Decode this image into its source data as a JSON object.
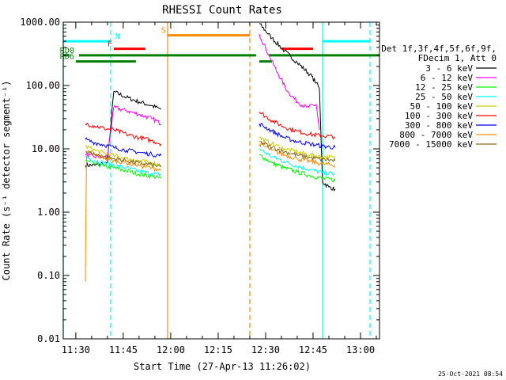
{
  "chart_data": {
    "type": "line",
    "title": "RHESSI Count Rates",
    "xlabel": "Start Time (27-Apr-13 11:26:02)",
    "ylabel": "Count Rate (s⁻¹ detector segment⁻¹)",
    "yscale": "log",
    "ylim": [
      0.01,
      1000
    ],
    "xlim": [
      "11:26:02",
      "13:06"
    ],
    "xticks": [
      "11:30",
      "11:45",
      "12:00",
      "12:15",
      "12:30",
      "12:45",
      "13:00"
    ],
    "yticks": [
      "0.01",
      "0.10",
      "1.00",
      "10.00",
      "100.00",
      "1000.00"
    ],
    "grid": false,
    "legend_position": "right",
    "legend_header": [
      "Det 1f,3f,4f,5f,6f,9f,",
      "FDecim 1, Att 0"
    ],
    "footer_date": "25-Oct-2021 08:54",
    "series": [
      {
        "name": "3 - 6 keV",
        "color": "#000000",
        "segments": [
          {
            "x": [
              "11:33",
              "11:36",
              "11:39",
              "11:40",
              "11:42",
              "11:46",
              "11:50",
              "11:54",
              "11:57"
            ],
            "y": [
              5.5,
              5.5,
              6.0,
              6.0,
              80,
              65,
              55,
              48,
              42
            ]
          },
          {
            "x": [
              "12:28",
              "12:32",
              "12:36",
              "12:40",
              "12:44",
              "12:46",
              "12:47",
              "12:48",
              "12:50",
              "12:52"
            ],
            "y": [
              950,
              560,
              350,
              230,
              150,
              110,
              90,
              3.0,
              2.5,
              2.3
            ]
          }
        ]
      },
      {
        "name": "6 - 12 keV",
        "color": "#ff00ff",
        "segments": [
          {
            "x": [
              "11:33",
              "11:36",
              "11:39",
              "11:40",
              "11:42",
              "11:46",
              "11:50",
              "11:54",
              "11:57"
            ],
            "y": [
              8,
              7.5,
              7.5,
              7.5,
              45,
              40,
              35,
              30,
              25
            ]
          },
          {
            "x": [
              "12:28",
              "12:31",
              "12:34",
              "12:37",
              "12:40",
              "12:43",
              "12:46",
              "12:47"
            ],
            "y": [
              650,
              300,
              150,
              80,
              55,
              45,
              50,
              20
            ]
          }
        ]
      },
      {
        "name": "12 - 25 keV",
        "color": "#00ff00",
        "segments": [
          {
            "x": [
              "11:33",
              "11:36",
              "11:39",
              "11:42",
              "11:46",
              "11:50",
              "11:54",
              "11:57"
            ],
            "y": [
              6.5,
              5.8,
              5.3,
              5.0,
              4.5,
              4.0,
              3.7,
              3.4
            ]
          },
          {
            "x": [
              "12:28",
              "12:32",
              "12:36",
              "12:40",
              "12:44",
              "12:48",
              "12:52"
            ],
            "y": [
              8,
              6,
              5,
              4.3,
              3.8,
              3.4,
              3.2
            ]
          }
        ]
      },
      {
        "name": "25 - 50 keV",
        "color": "#00ffff",
        "segments": [
          {
            "x": [
              "11:33",
              "11:36",
              "11:39",
              "11:42",
              "11:46",
              "11:50",
              "11:54",
              "11:57"
            ],
            "y": [
              7.5,
              6.5,
              6.0,
              5.5,
              5.0,
              4.4,
              4.1,
              3.9
            ]
          },
          {
            "x": [
              "12:28",
              "12:32",
              "12:36",
              "12:40",
              "12:44",
              "12:48",
              "12:52"
            ],
            "y": [
              10,
              7.5,
              6.3,
              5.3,
              4.7,
              4.2,
              4.0
            ]
          }
        ]
      },
      {
        "name": "50 - 100 keV",
        "color": "#cccc00",
        "segments": [
          {
            "x": [
              "11:33",
              "11:36",
              "11:39",
              "11:42",
              "11:46",
              "11:50",
              "11:54",
              "11:57"
            ],
            "y": [
              11,
              9.5,
              8.5,
              7.8,
              7.0,
              6.5,
              6.0,
              5.5
            ]
          },
          {
            "x": [
              "12:28",
              "12:32",
              "12:36",
              "12:40",
              "12:44",
              "12:48",
              "12:52"
            ],
            "y": [
              15,
              12,
              10,
              9,
              8,
              7.5,
              7.2
            ]
          }
        ]
      },
      {
        "name": "100 - 300 keV",
        "color": "#ff0000",
        "segments": [
          {
            "x": [
              "11:33",
              "11:36",
              "11:39",
              "11:42",
              "11:46",
              "11:50",
              "11:54",
              "11:57"
            ],
            "y": [
              25,
              23,
              21,
              20,
              17,
              15,
              13.5,
              12
            ]
          },
          {
            "x": [
              "12:28",
              "12:32",
              "12:36",
              "12:40",
              "12:44",
              "12:48",
              "12:52"
            ],
            "y": [
              38,
              28,
              22,
              19,
              17,
              16,
              15.5
            ]
          }
        ]
      },
      {
        "name": "300 - 800 keV",
        "color": "#0000ff",
        "segments": [
          {
            "x": [
              "11:33",
              "11:36",
              "11:39",
              "11:42",
              "11:46",
              "11:50",
              "11:54",
              "11:57"
            ],
            "y": [
              14,
              12.5,
              11.5,
              10.5,
              9.5,
              8.8,
              8.2,
              7.8
            ]
          },
          {
            "x": [
              "12:28",
              "12:32",
              "12:36",
              "12:40",
              "12:44",
              "12:48",
              "12:52"
            ],
            "y": [
              25,
              19,
              15,
              13,
              12,
              11,
              10.5
            ]
          }
        ]
      },
      {
        "name": "800 - 7000 keV",
        "color": "#ff8c00",
        "segments": [
          {
            "x": [
              "11:33",
              "11:33.2",
              "11:33.4",
              "11:36",
              "11:39",
              "11:42",
              "11:46",
              "11:50",
              "11:54",
              "11:57"
            ],
            "y": [
              0.08,
              1.0,
              9,
              8,
              7.2,
              6.5,
              6.0,
              5.5,
              5.0,
              4.6
            ]
          },
          {
            "x": [
              "12:28",
              "12:32",
              "12:36",
              "12:40",
              "12:44",
              "12:48",
              "12:52"
            ],
            "y": [
              12,
              9.5,
              8,
              7,
              6.3,
              5.8,
              5.5
            ]
          }
        ]
      },
      {
        "name": "7000 - 15000 keV",
        "color": "#8b6914",
        "segments": [
          {
            "x": [
              "11:33",
              "11:36",
              "11:39",
              "11:42",
              "11:46",
              "11:50",
              "11:54",
              "11:57"
            ],
            "y": [
              9,
              8.2,
              7.5,
              7.0,
              6.5,
              6.0,
              5.6,
              5.2
            ]
          },
          {
            "x": [
              "12:28",
              "12:32",
              "12:36",
              "12:40",
              "12:44",
              "12:48",
              "12:52"
            ],
            "y": [
              13,
              10.5,
              9,
              8,
              7.3,
              6.8,
              6.5
            ]
          }
        ]
      }
    ],
    "flag_bars": [
      {
        "label": "N",
        "color": "#00ffff",
        "value": 500,
        "ranges": [
          [
            "11:26:02",
            "11:41"
          ],
          [
            "12:48",
            "13:03"
          ]
        ]
      },
      {
        "label": "F",
        "color": "#ff0000",
        "value": 380,
        "ranges": [
          [
            "11:42",
            "11:52"
          ],
          [
            "12:35",
            "12:45"
          ]
        ]
      },
      {
        "label": "S",
        "color": "#ff8c00",
        "value": 620,
        "ranges": [
          [
            "11:59",
            "12:25"
          ]
        ]
      },
      {
        "label": "RD0",
        "color": "#008000",
        "value": 300,
        "ranges": [
          [
            "11:26:02",
            "11:28"
          ],
          [
            "11:31",
            "12:27"
          ],
          [
            "12:31",
            "13:06"
          ]
        ]
      },
      {
        "label": "RD6",
        "color": "#008000",
        "value": 240,
        "ranges": [
          [
            "11:30",
            "11:49"
          ],
          [
            "12:28",
            "12:32"
          ]
        ]
      }
    ],
    "vertical_lines": [
      {
        "x": "11:26:02",
        "color": "#00ffff",
        "style": "solid"
      },
      {
        "x": "11:41",
        "color": "#00ffff",
        "style": "dashed"
      },
      {
        "x": "11:59",
        "color": "#ff8c00",
        "style": "solid"
      },
      {
        "x": "12:25",
        "color": "#ff8c00",
        "style": "dashed"
      },
      {
        "x": "12:48",
        "color": "#00ffff",
        "style": "solid"
      },
      {
        "x": "13:03",
        "color": "#00ffff",
        "style": "dashed"
      }
    ]
  }
}
